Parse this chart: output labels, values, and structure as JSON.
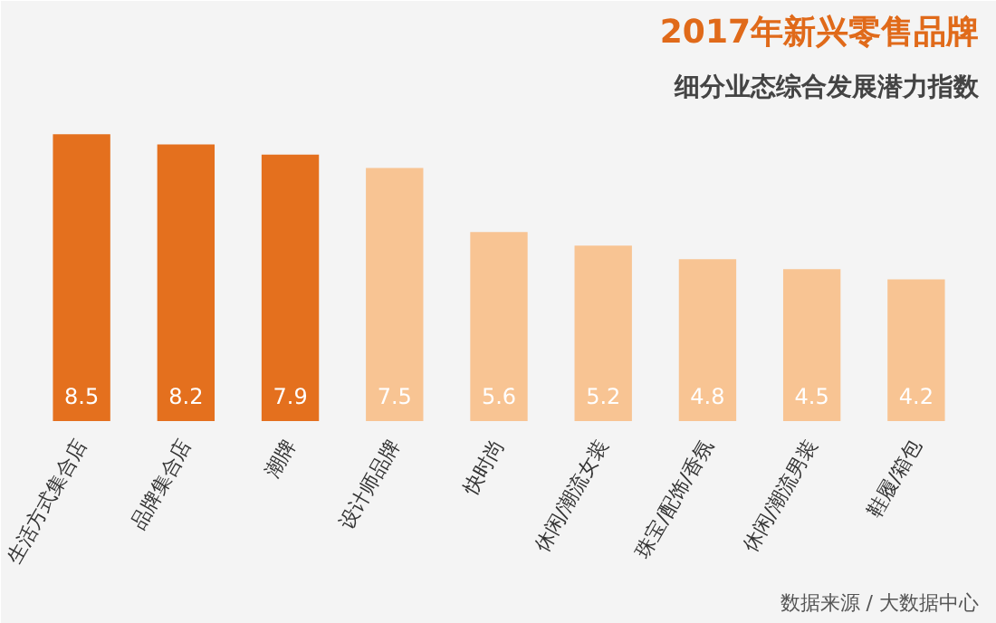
{
  "chart_data": {
    "type": "bar",
    "title": "2017年新兴零售品牌",
    "subtitle": "细分业态综合发展潜力指数",
    "categories": [
      "生活方式集合店",
      "品牌集合店",
      "潮牌",
      "设计师品牌",
      "快时尚",
      "休闲/潮流女装",
      "珠宝/配饰/香氛",
      "休闲/潮流男装",
      "鞋履/箱包"
    ],
    "values": [
      8.5,
      8.2,
      7.9,
      7.5,
      5.6,
      5.2,
      4.8,
      4.5,
      4.2
    ],
    "colors": [
      "#e4701e",
      "#e4701e",
      "#e4701e",
      "#f8c493",
      "#f8c493",
      "#f8c493",
      "#f8c493",
      "#f8c493",
      "#f8c493"
    ],
    "data_labels": true,
    "grid": false,
    "annotations": [
      "数据来源 / 大数据中心"
    ]
  }
}
